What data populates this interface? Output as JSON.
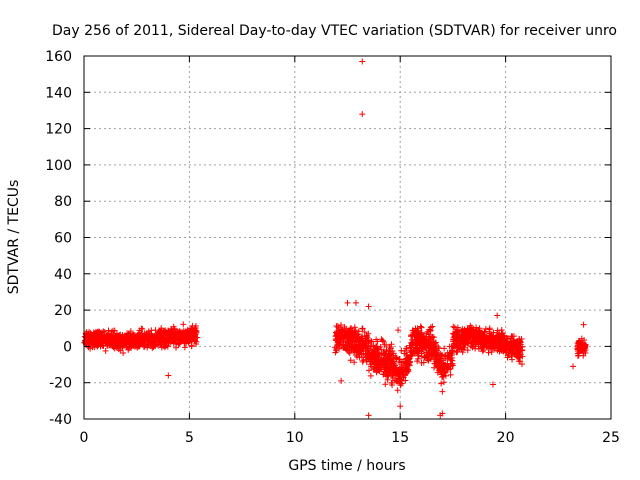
{
  "chart_data": {
    "type": "scatter",
    "title": "Day 256 of 2011, Sidereal Day-to-day VTEC variation (SDTVAR) for receiver unro",
    "xlabel": "GPS time / hours",
    "ylabel": "SDTVAR / TECUs",
    "xlim": [
      0,
      25
    ],
    "ylim": [
      -40,
      160
    ],
    "xticks": [
      0,
      5,
      10,
      15,
      20,
      25
    ],
    "yticks": [
      -40,
      -20,
      0,
      20,
      40,
      60,
      80,
      100,
      120,
      140,
      160
    ],
    "grid": true,
    "marker": "+",
    "color": "#ff0000",
    "series": [
      {
        "name": "SDTVAR",
        "segments": [
          {
            "t_start": 0.0,
            "t_end": 5.4,
            "center": [
              [
                0,
                4
              ],
              [
                2,
                3
              ],
              [
                4,
                5
              ],
              [
                5.4,
                6
              ]
            ],
            "spread": 6
          },
          {
            "t_start": 11.9,
            "t_end": 13.5,
            "center": [
              [
                11.9,
                5
              ],
              [
                12.5,
                4
              ],
              [
                13.5,
                -2
              ]
            ],
            "spread": 10
          },
          {
            "t_start": 13.5,
            "t_end": 15.5,
            "center": [
              [
                13.5,
                -5
              ],
              [
                14.5,
                -10
              ],
              [
                15.0,
                -15
              ],
              [
                15.5,
                -5
              ]
            ],
            "spread": 12
          },
          {
            "t_start": 15.5,
            "t_end": 17.5,
            "center": [
              [
                15.5,
                2
              ],
              [
                16.5,
                0
              ],
              [
                17.0,
                -12
              ],
              [
                17.5,
                -5
              ]
            ],
            "spread": 11
          },
          {
            "t_start": 17.5,
            "t_end": 20.8,
            "center": [
              [
                17.5,
                3
              ],
              [
                18.5,
                5
              ],
              [
                19.5,
                3
              ],
              [
                20.8,
                -2
              ]
            ],
            "spread": 8
          },
          {
            "t_start": 23.4,
            "t_end": 23.8,
            "center": [
              [
                23.4,
                0
              ],
              [
                23.8,
                0
              ]
            ],
            "spread": 6
          }
        ],
        "outliers": [
          [
            13.2,
            157
          ],
          [
            13.2,
            128
          ],
          [
            12.9,
            24
          ],
          [
            12.5,
            24
          ],
          [
            13.5,
            22
          ],
          [
            13.5,
            -38
          ],
          [
            15.0,
            -33
          ],
          [
            17.0,
            -37
          ],
          [
            16.9,
            -38
          ],
          [
            19.6,
            17
          ],
          [
            19.4,
            -21
          ],
          [
            12.2,
            -19
          ],
          [
            4.0,
            -16
          ],
          [
            23.7,
            12
          ],
          [
            23.2,
            -11
          ],
          [
            14.9,
            9
          ],
          [
            16.3,
            8
          ]
        ]
      }
    ]
  }
}
